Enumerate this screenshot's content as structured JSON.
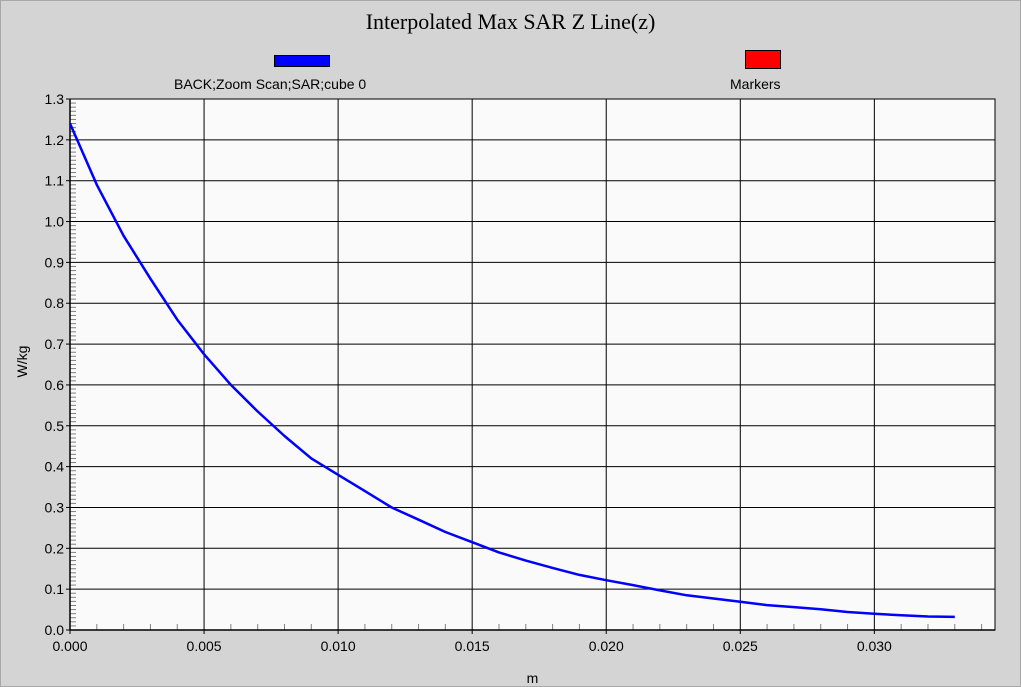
{
  "chart_data": {
    "type": "line",
    "title": "Interpolated Max SAR Z Line(z)",
    "xlabel": "m",
    "ylabel": "W/kg",
    "xlim": [
      0.0,
      0.0345
    ],
    "ylim": [
      0.0,
      1.3
    ],
    "x_ticks": [
      "0.000",
      "0.005",
      "0.010",
      "0.015",
      "0.020",
      "0.025",
      "0.030"
    ],
    "y_ticks": [
      "0.0",
      "0.1",
      "0.2",
      "0.3",
      "0.4",
      "0.5",
      "0.6",
      "0.7",
      "0.8",
      "0.9",
      "1.0",
      "1.1",
      "1.2",
      "1.3"
    ],
    "grid": true,
    "legend_position": "top",
    "series": [
      {
        "name": "BACK;Zoom Scan;SAR;cube 0",
        "color": "#0000ff",
        "x": [
          0.0,
          0.001,
          0.002,
          0.003,
          0.004,
          0.005,
          0.006,
          0.007,
          0.008,
          0.009,
          0.01,
          0.011,
          0.012,
          0.013,
          0.014,
          0.015,
          0.016,
          0.017,
          0.018,
          0.019,
          0.02,
          0.021,
          0.022,
          0.023,
          0.024,
          0.025,
          0.026,
          0.027,
          0.028,
          0.029,
          0.03,
          0.031,
          0.032,
          0.033
        ],
        "values": [
          1.24,
          1.09,
          0.965,
          0.86,
          0.76,
          0.675,
          0.6,
          0.535,
          0.475,
          0.42,
          0.38,
          0.34,
          0.3,
          0.27,
          0.24,
          0.215,
          0.19,
          0.17,
          0.152,
          0.135,
          0.122,
          0.11,
          0.097,
          0.085,
          0.077,
          0.069,
          0.061,
          0.056,
          0.051,
          0.044,
          0.04,
          0.036,
          0.033,
          0.032
        ]
      },
      {
        "name": "Markers",
        "color": "#ff0000",
        "x": [],
        "values": []
      }
    ]
  }
}
